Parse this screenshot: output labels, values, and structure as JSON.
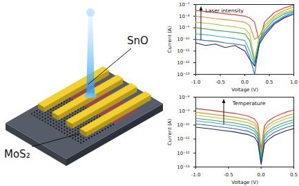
{
  "diagram": {
    "labels": [
      "MoS₂",
      "SnO"
    ]
  },
  "chart_data": [
    {
      "type": "line",
      "log": "y",
      "xlabel": "Voltage (V)",
      "ylabel": "Current (A)",
      "annotation": "Laser intensity",
      "x": [
        -1,
        -0.8,
        -0.6,
        -0.4,
        -0.2,
        0,
        0.1,
        0.2,
        0.3,
        0.4,
        0.6,
        0.8,
        1
      ],
      "xlim": [
        -1,
        1
      ],
      "xticks": [
        {
          "value": -1,
          "label": "-1.0"
        },
        {
          "value": -0.5,
          "label": "-0.5"
        },
        {
          "value": 0,
          "label": "0.0"
        },
        {
          "value": 0.5,
          "label": "0.5"
        },
        {
          "value": 1,
          "label": "1.0"
        }
      ],
      "ylim": [
        1e-13,
        1e-07
      ],
      "yticks": [
        {
          "value": 1e-13,
          "label": "10⁻¹³"
        },
        {
          "value": 1e-12,
          "label": "10⁻¹²"
        },
        {
          "value": 1e-11,
          "label": "10⁻¹¹"
        },
        {
          "value": 1e-10,
          "label": "10⁻¹⁰"
        },
        {
          "value": 1e-09,
          "label": "10⁻⁹"
        },
        {
          "value": 1e-08,
          "label": "10⁻⁸"
        },
        {
          "value": 1e-07,
          "label": "10⁻⁷"
        }
      ],
      "grid": false,
      "series": [
        {
          "color": "#e8372b",
          "values": [
            3e-08,
            2.5e-08,
            2e-08,
            1.6e-08,
            1.3e-08,
            1e-08,
            7e-09,
            3e-09,
            5e-11,
            3e-09,
            2e-08,
            5e-08,
            9e-08
          ]
        },
        {
          "color": "#f08a24",
          "values": [
            1e-08,
            8e-09,
            6e-09,
            5e-09,
            4e-09,
            3e-09,
            1.5e-09,
            1e-10,
            2e-10,
            1.5e-09,
            1e-08,
            3e-08,
            6e-08
          ]
        },
        {
          "color": "#b5c72a",
          "values": [
            3e-09,
            2.5e-09,
            2e-09,
            1.5e-09,
            1.2e-09,
            8e-10,
            3e-10,
            2e-12,
            2e-10,
            1e-09,
            7e-09,
            2e-08,
            4e-08
          ]
        },
        {
          "color": "#3aa84a",
          "values": [
            1e-09,
            8e-10,
            6e-10,
            5e-10,
            4e-10,
            3e-10,
            8e-11,
            1e-12,
            1e-10,
            6e-10,
            5e-09,
            1.5e-08,
            3e-08
          ]
        },
        {
          "color": "#23b3c9",
          "values": [
            3e-10,
            2.5e-10,
            2e-10,
            1.5e-10,
            1.2e-10,
            8e-11,
            1e-11,
            5e-13,
            8e-11,
            4e-10,
            3e-09,
            1e-08,
            2.5e-08
          ]
        },
        {
          "color": "#3a5fcc",
          "values": [
            1e-10,
            8e-11,
            7e-11,
            5e-11,
            4e-11,
            3e-11,
            3e-12,
            1e-13,
            6e-11,
            3e-10,
            2.5e-09,
            8e-09,
            2e-08
          ]
        },
        {
          "color": "#1f2a6b",
          "values": [
            5e-11,
            3e-11,
            4e-11,
            2e-11,
            3e-11,
            1e-11,
            2e-12,
            5e-13,
            4e-11,
            2e-10,
            2e-09,
            7e-09,
            1.5e-08
          ]
        }
      ]
    },
    {
      "type": "line",
      "log": "y",
      "xlabel": "Voltage (V)",
      "ylabel": "Current (A)",
      "annotation": "Temperature",
      "x": [
        -1,
        -0.8,
        -0.6,
        -0.4,
        -0.2,
        -0.1,
        -0.05,
        0,
        0.05,
        0.1,
        0.2,
        0.3,
        0.4,
        0.5
      ],
      "xlim": [
        -1,
        0.5
      ],
      "xticks": [
        {
          "value": -1,
          "label": "-1.0"
        },
        {
          "value": -0.5,
          "label": "-0.5"
        },
        {
          "value": 0,
          "label": "0.0"
        },
        {
          "value": 0.5,
          "label": "0.5"
        }
      ],
      "ylim": [
        1e-13,
        1e-08
      ],
      "yticks": [
        {
          "value": 1e-13,
          "label": "10⁻¹³"
        },
        {
          "value": 1e-12,
          "label": "10⁻¹²"
        },
        {
          "value": 1e-11,
          "label": "10⁻¹¹"
        },
        {
          "value": 1e-10,
          "label": "10⁻¹⁰"
        },
        {
          "value": 1e-09,
          "label": "10⁻⁹"
        },
        {
          "value": 1e-08,
          "label": "10⁻⁸"
        }
      ],
      "grid": false,
      "series": [
        {
          "color": "#e8372b",
          "values": [
            1.5e-09,
            1.2e-09,
            9e-10,
            6.8e-10,
            4.5e-10,
            2.7e-10,
            1.2e-10,
            2e-12,
            9e-11,
            1.8e-10,
            3.8e-10,
            6e-10,
            9e-10,
            1.2e-09
          ]
        },
        {
          "color": "#f08a24",
          "values": [
            8e-10,
            6.4e-10,
            4.8e-10,
            3.6e-10,
            2.4e-10,
            1.4e-10,
            6.4e-11,
            1.2e-12,
            4.8e-11,
            9.6e-11,
            2e-10,
            3.2e-10,
            4.8e-10,
            6.4e-10
          ]
        },
        {
          "color": "#b5c72a",
          "values": [
            5e-10,
            4e-10,
            3e-10,
            2.3e-10,
            1.5e-10,
            9e-11,
            4e-11,
            8e-13,
            3e-11,
            6e-11,
            1.3e-10,
            2e-10,
            3e-10,
            4e-10
          ]
        },
        {
          "color": "#3aa84a",
          "values": [
            3e-10,
            2.4e-10,
            1.8e-10,
            1.4e-10,
            9e-11,
            5.4e-11,
            2.4e-11,
            5e-13,
            1.8e-11,
            3.6e-11,
            7.5e-11,
            1.2e-10,
            1.8e-10,
            2.4e-10
          ]
        },
        {
          "color": "#23b3c9",
          "values": [
            2e-10,
            1.6e-10,
            1.2e-10,
            9e-11,
            6e-11,
            3.6e-11,
            1.6e-11,
            3e-13,
            1.2e-11,
            2.4e-11,
            5e-11,
            8e-11,
            1.2e-10,
            1.6e-10
          ]
        },
        {
          "color": "#3a5fcc",
          "values": [
            1.2e-10,
            9.6e-11,
            7.2e-11,
            5.4e-11,
            3.6e-11,
            2.2e-11,
            9.6e-12,
            2e-13,
            7.2e-12,
            1.4e-11,
            3e-11,
            4.8e-11,
            7.2e-11,
            9.6e-11
          ]
        },
        {
          "color": "#1f2a6b",
          "values": [
            7e-11,
            5.6e-11,
            4.2e-11,
            3.2e-11,
            2.1e-11,
            1.3e-11,
            5.6e-12,
            1.5e-13,
            4.2e-12,
            8.4e-12,
            1.8e-11,
            2.8e-11,
            4.2e-11,
            5.6e-11
          ]
        }
      ]
    }
  ]
}
